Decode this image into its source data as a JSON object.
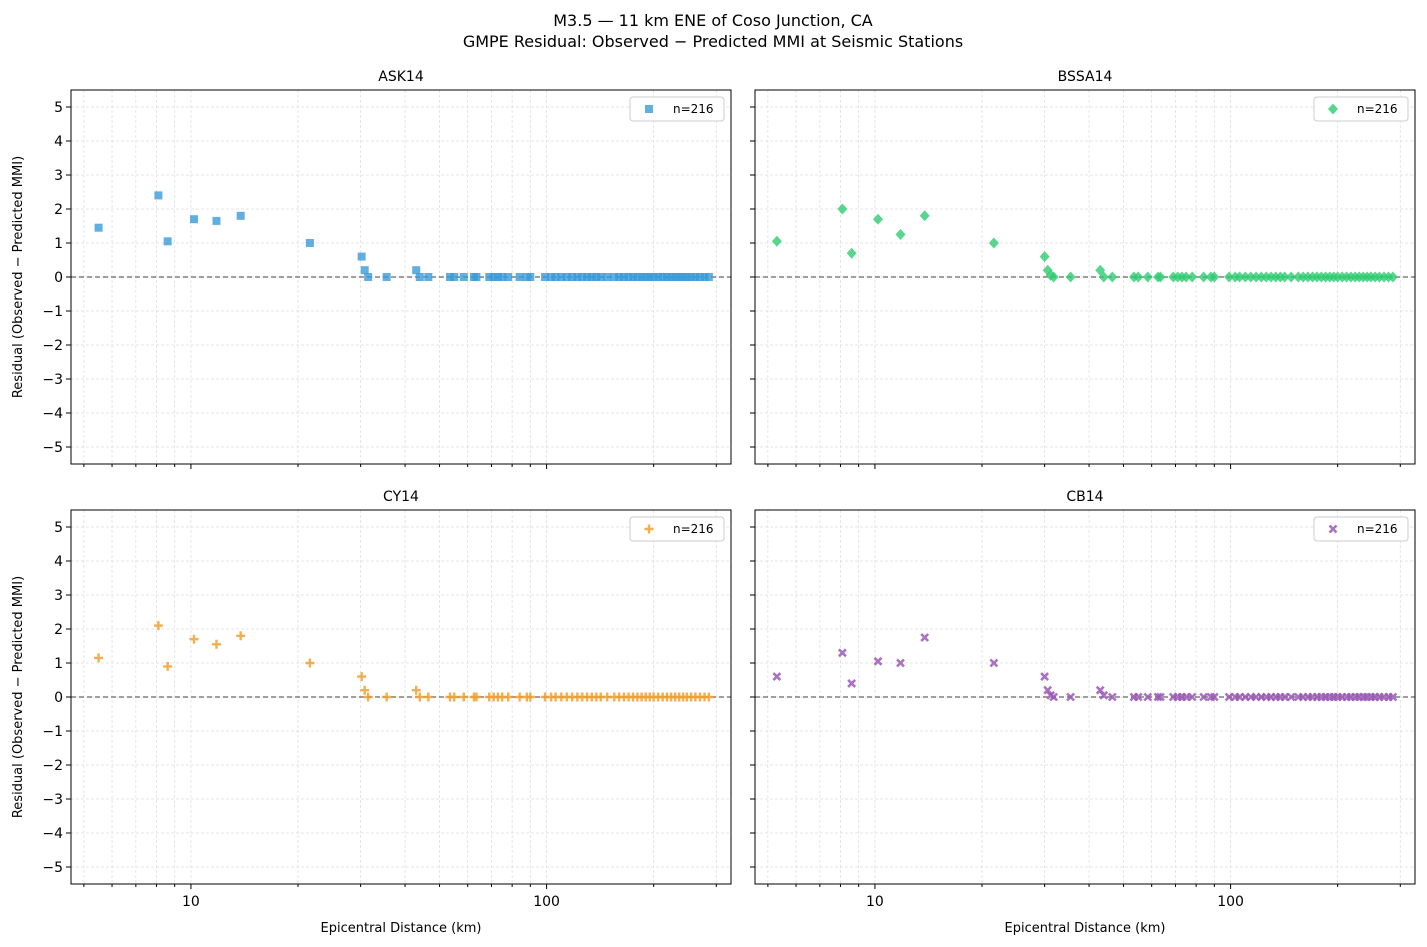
{
  "figure": {
    "title_line1": "M3.5 — 11 km ENE of Coso Junction, CA",
    "title_line2": "GMPE Residual: Observed − Predicted MMI at Seismic Stations"
  },
  "axes": {
    "xlabel": "Epicentral Distance (km)",
    "ylabel": "Residual (Observed − Predicted MMI)",
    "xscale": "log",
    "xlim": [
      4.6,
      330
    ],
    "ylim": [
      -5.5,
      5.5
    ],
    "xticks_major": [
      10,
      100
    ],
    "xtick_labels": [
      "10",
      "100"
    ],
    "yticks": [
      -5,
      -4,
      -3,
      -2,
      -1,
      0,
      1,
      2,
      3,
      4,
      5
    ],
    "ytick_labels": [
      "−5",
      "−4",
      "−3",
      "−2",
      "−1",
      "0",
      "1",
      "2",
      "3",
      "4",
      "5"
    ],
    "grid": true,
    "zero_line": "dashed",
    "legend_placement": "top-right"
  },
  "chart_data": [
    {
      "type": "scatter",
      "title": "ASK14",
      "marker": "square",
      "color": "#3a9ad9",
      "legend": "n=216",
      "points": [
        [
          5.5,
          1.45
        ],
        [
          8.1,
          2.4
        ],
        [
          8.6,
          1.05
        ],
        [
          10.2,
          1.7
        ],
        [
          11.8,
          1.65
        ],
        [
          13.8,
          1.8
        ],
        [
          21.6,
          1.0
        ],
        [
          30.2,
          0.6
        ],
        [
          30.8,
          0.2
        ],
        [
          31.5,
          0.0
        ],
        [
          35.5,
          0.0
        ],
        [
          43.0,
          0.2
        ],
        [
          44.0,
          0.0
        ],
        [
          46.5,
          0.0
        ],
        [
          53.5,
          0.0
        ],
        [
          55.0,
          0.0
        ],
        [
          58.5,
          0.0
        ],
        [
          62.5,
          0.0
        ],
        [
          63.5,
          0.0
        ],
        [
          69.0,
          0.0
        ],
        [
          71.0,
          0.0
        ],
        [
          73.0,
          0.0
        ],
        [
          75.0,
          0.0
        ],
        [
          78.0,
          0.0
        ],
        [
          84.0,
          0.0
        ],
        [
          88.0,
          0.0
        ],
        [
          90.0,
          0.0
        ],
        [
          99.0,
          0.0
        ],
        [
          103.0,
          0.0
        ],
        [
          106.0,
          0.0
        ],
        [
          110.0,
          0.0
        ],
        [
          114.0,
          0.0
        ],
        [
          118.0,
          0.0
        ],
        [
          122.0,
          0.0
        ],
        [
          126.0,
          0.0
        ],
        [
          130.0,
          0.0
        ],
        [
          134.0,
          0.0
        ],
        [
          138.0,
          0.0
        ],
        [
          142.0,
          0.0
        ],
        [
          148.0,
          0.0
        ],
        [
          155.0,
          0.0
        ],
        [
          160.0,
          0.0
        ],
        [
          165.0,
          0.0
        ],
        [
          170.0,
          0.0
        ],
        [
          175.0,
          0.0
        ],
        [
          180.0,
          0.0
        ],
        [
          185.0,
          0.0
        ],
        [
          190.0,
          0.0
        ],
        [
          195.0,
          0.0
        ],
        [
          200.0,
          0.0
        ],
        [
          206.0,
          0.0
        ],
        [
          212.0,
          0.0
        ],
        [
          218.0,
          0.0
        ],
        [
          224.0,
          0.0
        ],
        [
          230.0,
          0.0
        ],
        [
          236.0,
          0.0
        ],
        [
          242.0,
          0.0
        ],
        [
          248.0,
          0.0
        ],
        [
          255.0,
          0.0
        ],
        [
          262.0,
          0.0
        ],
        [
          270.0,
          0.0
        ],
        [
          278.0,
          0.0
        ],
        [
          286.0,
          0.0
        ]
      ]
    },
    {
      "type": "scatter",
      "title": "BSSA14",
      "marker": "diamond",
      "color": "#2ecc71",
      "legend": "n=216",
      "points": [
        [
          5.3,
          1.05
        ],
        [
          8.1,
          2.0
        ],
        [
          8.6,
          0.7
        ],
        [
          10.2,
          1.7
        ],
        [
          11.8,
          1.25
        ],
        [
          13.8,
          1.8
        ],
        [
          21.6,
          1.0
        ],
        [
          30.0,
          0.6
        ],
        [
          30.6,
          0.2
        ],
        [
          31.2,
          0.05
        ],
        [
          31.8,
          0.0
        ],
        [
          35.5,
          0.0
        ],
        [
          43.0,
          0.2
        ],
        [
          44.0,
          0.0
        ],
        [
          46.5,
          0.0
        ],
        [
          53.5,
          0.0
        ],
        [
          55.0,
          0.0
        ],
        [
          58.5,
          0.0
        ],
        [
          62.5,
          0.0
        ],
        [
          63.5,
          0.0
        ],
        [
          69.0,
          0.0
        ],
        [
          71.0,
          0.0
        ],
        [
          73.0,
          0.0
        ],
        [
          75.0,
          0.0
        ],
        [
          78.0,
          0.0
        ],
        [
          84.0,
          0.0
        ],
        [
          88.0,
          0.0
        ],
        [
          90.0,
          0.0
        ],
        [
          99.0,
          0.0
        ],
        [
          103.0,
          0.0
        ],
        [
          106.0,
          0.0
        ],
        [
          110.0,
          0.0
        ],
        [
          114.0,
          0.0
        ],
        [
          118.0,
          0.0
        ],
        [
          122.0,
          0.0
        ],
        [
          126.0,
          0.0
        ],
        [
          130.0,
          0.0
        ],
        [
          134.0,
          0.0
        ],
        [
          138.0,
          0.0
        ],
        [
          142.0,
          0.0
        ],
        [
          148.0,
          0.0
        ],
        [
          155.0,
          0.0
        ],
        [
          160.0,
          0.0
        ],
        [
          165.0,
          0.0
        ],
        [
          170.0,
          0.0
        ],
        [
          175.0,
          0.0
        ],
        [
          180.0,
          0.0
        ],
        [
          185.0,
          0.0
        ],
        [
          190.0,
          0.0
        ],
        [
          195.0,
          0.0
        ],
        [
          200.0,
          0.0
        ],
        [
          206.0,
          0.0
        ],
        [
          212.0,
          0.0
        ],
        [
          218.0,
          0.0
        ],
        [
          224.0,
          0.0
        ],
        [
          230.0,
          0.0
        ],
        [
          236.0,
          0.0
        ],
        [
          242.0,
          0.0
        ],
        [
          248.0,
          0.0
        ],
        [
          255.0,
          0.0
        ],
        [
          262.0,
          0.0
        ],
        [
          270.0,
          0.0
        ],
        [
          278.0,
          0.0
        ],
        [
          286.0,
          0.0
        ]
      ]
    },
    {
      "type": "scatter",
      "title": "CY14",
      "marker": "plus",
      "color": "#f0a030",
      "legend": "n=216",
      "points": [
        [
          5.5,
          1.15
        ],
        [
          8.1,
          2.1
        ],
        [
          8.6,
          0.9
        ],
        [
          10.2,
          1.7
        ],
        [
          11.8,
          1.55
        ],
        [
          13.8,
          1.8
        ],
        [
          21.6,
          1.0
        ],
        [
          30.2,
          0.6
        ],
        [
          30.8,
          0.2
        ],
        [
          31.5,
          0.0
        ],
        [
          35.5,
          0.0
        ],
        [
          43.0,
          0.2
        ],
        [
          44.0,
          0.0
        ],
        [
          46.5,
          0.0
        ],
        [
          53.5,
          0.0
        ],
        [
          55.0,
          0.0
        ],
        [
          58.5,
          0.0
        ],
        [
          62.5,
          0.0
        ],
        [
          63.5,
          0.0
        ],
        [
          69.0,
          0.0
        ],
        [
          71.0,
          0.0
        ],
        [
          73.0,
          0.0
        ],
        [
          75.0,
          0.0
        ],
        [
          78.0,
          0.0
        ],
        [
          84.0,
          0.0
        ],
        [
          88.0,
          0.0
        ],
        [
          90.0,
          0.0
        ],
        [
          99.0,
          0.0
        ],
        [
          103.0,
          0.0
        ],
        [
          106.0,
          0.0
        ],
        [
          110.0,
          0.0
        ],
        [
          114.0,
          0.0
        ],
        [
          118.0,
          0.0
        ],
        [
          122.0,
          0.0
        ],
        [
          126.0,
          0.0
        ],
        [
          130.0,
          0.0
        ],
        [
          134.0,
          0.0
        ],
        [
          138.0,
          0.0
        ],
        [
          142.0,
          0.0
        ],
        [
          148.0,
          0.0
        ],
        [
          155.0,
          0.0
        ],
        [
          160.0,
          0.0
        ],
        [
          165.0,
          0.0
        ],
        [
          170.0,
          0.0
        ],
        [
          175.0,
          0.0
        ],
        [
          180.0,
          0.0
        ],
        [
          185.0,
          0.0
        ],
        [
          190.0,
          0.0
        ],
        [
          195.0,
          0.0
        ],
        [
          200.0,
          0.0
        ],
        [
          206.0,
          0.0
        ],
        [
          212.0,
          0.0
        ],
        [
          218.0,
          0.0
        ],
        [
          224.0,
          0.0
        ],
        [
          230.0,
          0.0
        ],
        [
          236.0,
          0.0
        ],
        [
          242.0,
          0.0
        ],
        [
          248.0,
          0.0
        ],
        [
          255.0,
          0.0
        ],
        [
          262.0,
          0.0
        ],
        [
          270.0,
          0.0
        ],
        [
          278.0,
          0.0
        ],
        [
          286.0,
          0.0
        ]
      ]
    },
    {
      "type": "scatter",
      "title": "CB14",
      "marker": "x",
      "color": "#9b59b6",
      "legend": "n=216",
      "points": [
        [
          5.3,
          0.6
        ],
        [
          8.1,
          1.3
        ],
        [
          8.6,
          0.4
        ],
        [
          10.2,
          1.05
        ],
        [
          11.8,
          1.0
        ],
        [
          13.8,
          1.75
        ],
        [
          21.6,
          1.0
        ],
        [
          30.0,
          0.6
        ],
        [
          30.6,
          0.2
        ],
        [
          31.2,
          0.05
        ],
        [
          31.8,
          0.0
        ],
        [
          35.5,
          0.0
        ],
        [
          43.0,
          0.2
        ],
        [
          44.0,
          0.05
        ],
        [
          46.5,
          0.0
        ],
        [
          53.5,
          0.0
        ],
        [
          55.0,
          0.0
        ],
        [
          58.5,
          0.0
        ],
        [
          62.5,
          0.0
        ],
        [
          63.5,
          0.0
        ],
        [
          69.0,
          0.0
        ],
        [
          71.0,
          0.0
        ],
        [
          73.0,
          0.0
        ],
        [
          75.0,
          0.0
        ],
        [
          78.0,
          0.0
        ],
        [
          84.0,
          0.0
        ],
        [
          88.0,
          0.0
        ],
        [
          90.0,
          0.0
        ],
        [
          99.0,
          0.0
        ],
        [
          103.0,
          0.0
        ],
        [
          106.0,
          0.0
        ],
        [
          110.0,
          0.0
        ],
        [
          114.0,
          0.0
        ],
        [
          118.0,
          0.0
        ],
        [
          122.0,
          0.0
        ],
        [
          126.0,
          0.0
        ],
        [
          130.0,
          0.0
        ],
        [
          134.0,
          0.0
        ],
        [
          138.0,
          0.0
        ],
        [
          142.0,
          0.0
        ],
        [
          148.0,
          0.0
        ],
        [
          155.0,
          0.0
        ],
        [
          160.0,
          0.0
        ],
        [
          165.0,
          0.0
        ],
        [
          170.0,
          0.0
        ],
        [
          175.0,
          0.0
        ],
        [
          180.0,
          0.0
        ],
        [
          185.0,
          0.0
        ],
        [
          190.0,
          0.0
        ],
        [
          195.0,
          0.0
        ],
        [
          200.0,
          0.0
        ],
        [
          206.0,
          0.0
        ],
        [
          212.0,
          0.0
        ],
        [
          218.0,
          0.0
        ],
        [
          224.0,
          0.0
        ],
        [
          230.0,
          0.0
        ],
        [
          236.0,
          0.0
        ],
        [
          242.0,
          0.0
        ],
        [
          248.0,
          0.0
        ],
        [
          255.0,
          0.0
        ],
        [
          262.0,
          0.0
        ],
        [
          270.0,
          0.0
        ],
        [
          278.0,
          0.0
        ],
        [
          286.0,
          0.0
        ]
      ]
    }
  ]
}
